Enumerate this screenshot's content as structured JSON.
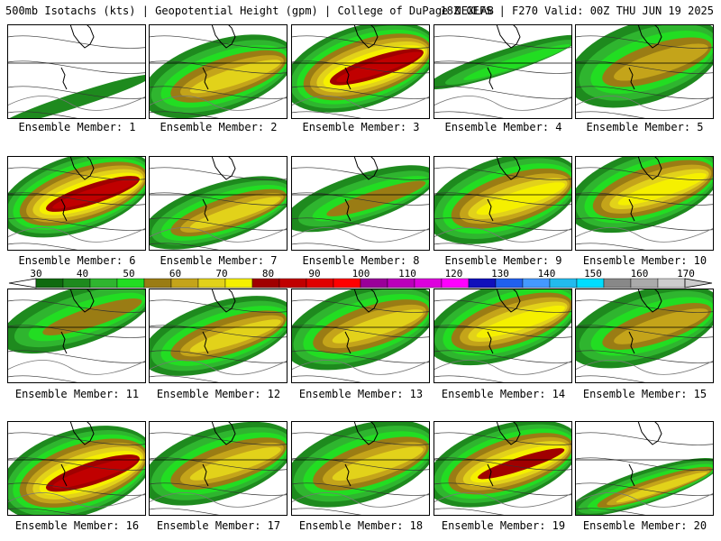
{
  "header": {
    "left": "500mb Isotachs (kts) | Geopotential Height (gpm) | College of DuPage NEXLAB",
    "right": "18Z GEFS | F270 Valid: 00Z THU JUN 19 2025"
  },
  "colorbar": {
    "labels": [
      "30",
      "40",
      "50",
      "60",
      "70",
      "80",
      "90",
      "100",
      "110",
      "120",
      "130",
      "140",
      "150",
      "160",
      "170"
    ],
    "colors": [
      "#0f6a0f",
      "#1e8a1e",
      "#2fb52f",
      "#22dd22",
      "#9a7c14",
      "#c4a41a",
      "#e2d21a",
      "#f5f000",
      "#a00000",
      "#c00000",
      "#e00000",
      "#ff0000",
      "#9a0099",
      "#bb00bb",
      "#dd00dd",
      "#ff00ff",
      "#1010bb",
      "#2060ee",
      "#4499ff",
      "#22bbee",
      "#00ddff",
      "#888888",
      "#aaaaaa",
      "#cccccc"
    ]
  },
  "panels": [
    {
      "label": "Ensemble Member: 1",
      "cover": 0.15,
      "max_level": 1,
      "band": 0.8
    },
    {
      "label": "Ensemble Member: 2",
      "cover": 0.75,
      "max_level": 6,
      "band": 0.55
    },
    {
      "label": "Ensemble Member: 3",
      "cover": 0.85,
      "max_level": 9,
      "band": 0.45
    },
    {
      "label": "Ensemble Member: 4",
      "cover": 0.25,
      "max_level": 3,
      "band": 0.4
    },
    {
      "label": "Ensemble Member: 5",
      "cover": 0.85,
      "max_level": 5,
      "band": 0.4
    },
    {
      "label": "Ensemble Member: 6",
      "cover": 0.8,
      "max_level": 9,
      "band": 0.4
    },
    {
      "label": "Ensemble Member: 7",
      "cover": 0.6,
      "max_level": 6,
      "band": 0.6
    },
    {
      "label": "Ensemble Member: 8",
      "cover": 0.5,
      "max_level": 4,
      "band": 0.45
    },
    {
      "label": "Ensemble Member: 9",
      "cover": 0.85,
      "max_level": 7,
      "band": 0.45
    },
    {
      "label": "Ensemble Member: 10",
      "cover": 0.8,
      "max_level": 7,
      "band": 0.35
    },
    {
      "label": "Ensemble Member: 11",
      "cover": 0.6,
      "max_level": 4,
      "band": 0.3
    },
    {
      "label": "Ensemble Member: 12",
      "cover": 0.7,
      "max_level": 6,
      "band": 0.5
    },
    {
      "label": "Ensemble Member: 13",
      "cover": 0.8,
      "max_level": 6,
      "band": 0.4
    },
    {
      "label": "Ensemble Member: 14",
      "cover": 0.8,
      "max_level": 7,
      "band": 0.35
    },
    {
      "label": "Ensemble Member: 15",
      "cover": 0.75,
      "max_level": 5,
      "band": 0.4
    },
    {
      "label": "Ensemble Member: 16",
      "cover": 0.9,
      "max_level": 9,
      "band": 0.55
    },
    {
      "label": "Ensemble Member: 17",
      "cover": 0.75,
      "max_level": 6,
      "band": 0.45
    },
    {
      "label": "Ensemble Member: 18",
      "cover": 0.8,
      "max_level": 6,
      "band": 0.45
    },
    {
      "label": "Ensemble Member: 19",
      "cover": 0.8,
      "max_level": 8,
      "band": 0.45
    },
    {
      "label": "Ensemble Member: 20",
      "cover": 0.35,
      "max_level": 6,
      "band": 0.7
    }
  ]
}
